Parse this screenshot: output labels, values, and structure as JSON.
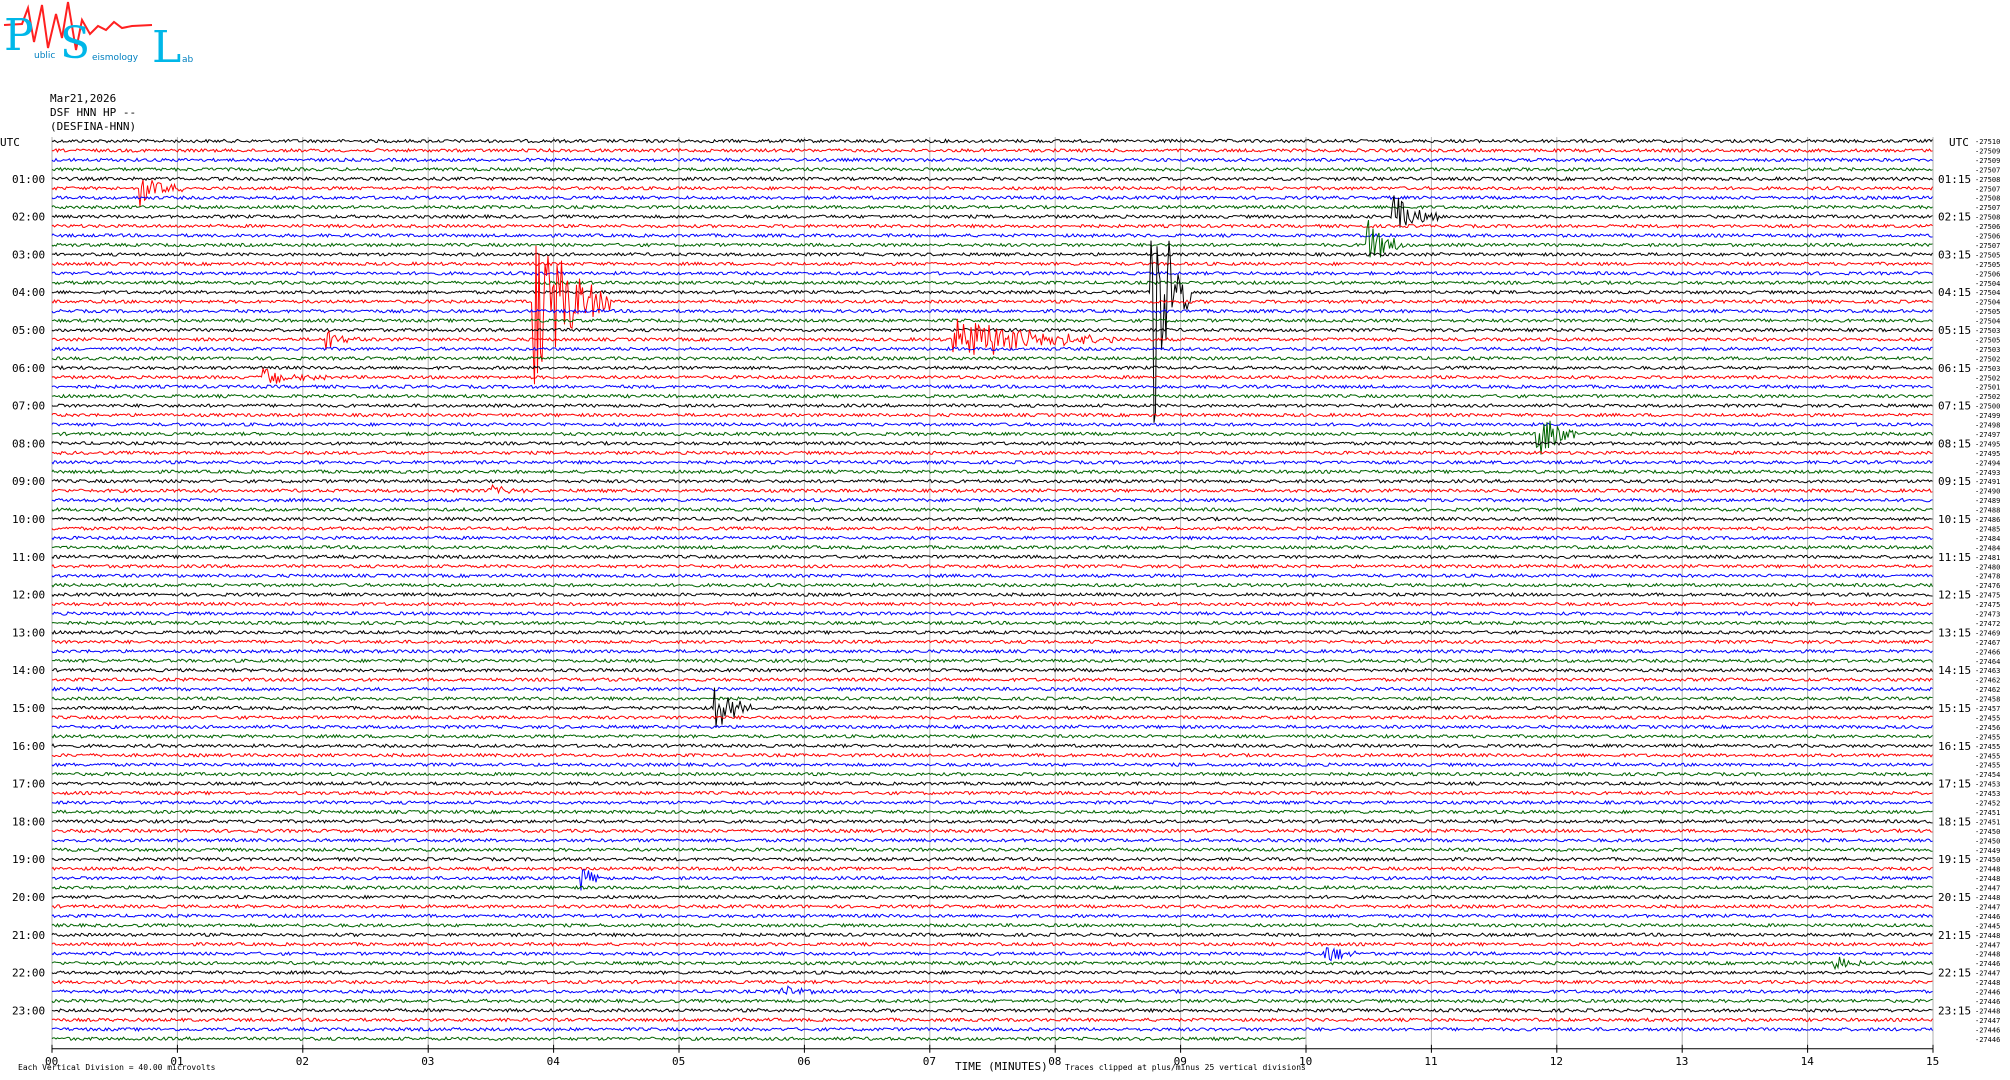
{
  "logo": {
    "letters": [
      "P",
      "S",
      "L"
    ],
    "subtext": [
      "ublic",
      "eismology",
      "ab"
    ]
  },
  "header": {
    "date": "Mar21,2026",
    "station": "DSF HNN HP --",
    "network": "(DESFINA-HNN)"
  },
  "chart_data": {
    "type": "seismogram",
    "left_axis_title": "UTC",
    "right_axis_title": "UTC",
    "xlabel": "TIME (MINUTES)",
    "x_range": [
      0,
      15
    ],
    "x_ticks": [
      "00",
      "01",
      "02",
      "03",
      "04",
      "05",
      "06",
      "07",
      "08",
      "09",
      "10",
      "11",
      "12",
      "13",
      "14",
      "15"
    ],
    "left_hour_labels": [
      "01:00",
      "02:00",
      "03:00",
      "04:00",
      "05:00",
      "06:00",
      "07:00",
      "08:00",
      "09:00",
      "10:00",
      "11:00",
      "12:00",
      "13:00",
      "14:00",
      "15:00",
      "16:00",
      "17:00",
      "18:00",
      "19:00",
      "20:00",
      "21:00",
      "22:00",
      "23:00"
    ],
    "right_hour_labels": [
      "01:15",
      "02:15",
      "03:15",
      "04:15",
      "05:15",
      "06:15",
      "07:15",
      "08:15",
      "09:15",
      "10:15",
      "11:15",
      "12:15",
      "13:15",
      "14:15",
      "15:15",
      "16:15",
      "17:15",
      "18:15",
      "19:15",
      "20:15",
      "21:15",
      "22:15",
      "23:15"
    ],
    "trace_colors": [
      "#000000",
      "#ff0000",
      "#0000ff",
      "#006400"
    ],
    "trace_count": 96,
    "last_trace_end_minute": 10,
    "trace_offsets": [
      "-27510",
      "-27509",
      "-27509",
      "-27507",
      "-27508",
      "-27507",
      "-27508",
      "-27507",
      "-27508",
      "-27506",
      "-27506",
      "-27507",
      "-27505",
      "-27505",
      "-27506",
      "-27504",
      "-27504",
      "-27504",
      "-27505",
      "-27504",
      "-27503",
      "-27505",
      "-27503",
      "-27502",
      "-27503",
      "-27502",
      "-27501",
      "-27502",
      "-27500",
      "-27499",
      "-27498",
      "-27497",
      "-27495",
      "-27495",
      "-27494",
      "-27493",
      "-27491",
      "-27490",
      "-27489",
      "-27488",
      "-27486",
      "-27485",
      "-27484",
      "-27484",
      "-27481",
      "-27480",
      "-27478",
      "-27476",
      "-27475",
      "-27475",
      "-27473",
      "-27472",
      "-27469",
      "-27467",
      "-27466",
      "-27464",
      "-27463",
      "-27462",
      "-27462",
      "-27458",
      "-27457",
      "-27455",
      "-27456",
      "-27455",
      "-27455",
      "-27455",
      "-27455",
      "-27454",
      "-27453",
      "-27453",
      "-27452",
      "-27451",
      "-27451",
      "-27450",
      "-27450",
      "-27449",
      "-27450",
      "-27448",
      "-27448",
      "-27447",
      "-27448",
      "-27447",
      "-27446",
      "-27445",
      "-27448",
      "-27447",
      "-27448",
      "-27446",
      "-27447",
      "-27448",
      "-27446",
      "-27446",
      "-27448",
      "-27447",
      "-27446",
      "-27446"
    ],
    "events": [
      {
        "trace": 5,
        "minute": 0.72,
        "amplitude": 16,
        "duration": 0.35
      },
      {
        "trace": 8,
        "minute": 10.7,
        "amplitude": 24,
        "duration": 0.35
      },
      {
        "trace": 11,
        "minute": 10.5,
        "amplitude": 26,
        "duration": 0.3
      },
      {
        "trace": 17,
        "minute": 3.85,
        "amplitude": 90,
        "duration": 0.6
      },
      {
        "trace": 16,
        "minute": 8.78,
        "amplitude": 140,
        "duration": 0.3
      },
      {
        "trace": 21,
        "minute": 7.2,
        "amplitude": 24,
        "duration": 1.3
      },
      {
        "trace": 21,
        "minute": 2.2,
        "amplitude": 12,
        "duration": 0.25
      },
      {
        "trace": 25,
        "minute": 1.7,
        "amplitude": 10,
        "duration": 0.5
      },
      {
        "trace": 31,
        "minute": 11.85,
        "amplitude": 30,
        "duration": 0.3
      },
      {
        "trace": 37,
        "minute": 3.5,
        "amplitude": 6,
        "duration": 0.3
      },
      {
        "trace": 60,
        "minute": 5.3,
        "amplitude": 24,
        "duration": 0.3
      },
      {
        "trace": 78,
        "minute": 4.2,
        "amplitude": 16,
        "duration": 0.2
      },
      {
        "trace": 86,
        "minute": 10.15,
        "amplitude": 12,
        "duration": 0.3
      },
      {
        "trace": 90,
        "minute": 5.8,
        "amplitude": 8,
        "duration": 0.3
      },
      {
        "trace": 87,
        "minute": 14.2,
        "amplitude": 10,
        "duration": 0.25
      }
    ]
  },
  "footer": {
    "scale_note": "Each Vertical Division =   40.00 microvolts",
    "clip_note": "Traces clipped at plus/minus 25 vertical divisions"
  }
}
